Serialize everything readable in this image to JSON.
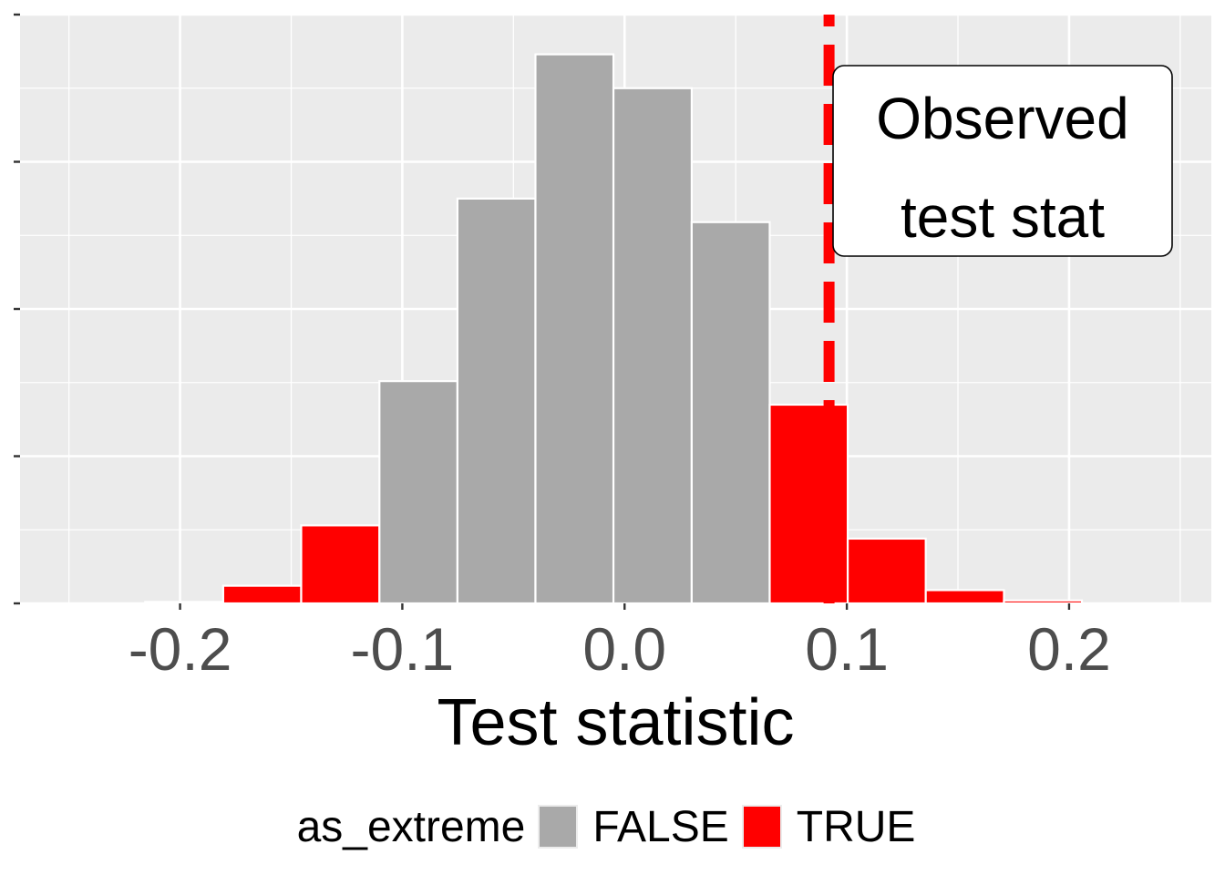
{
  "chart_data": {
    "type": "bar",
    "subtype": "histogram",
    "title": "",
    "xlabel": "Test statistic",
    "ylabel": "",
    "xlim": [
      -0.272,
      0.264
    ],
    "ylim": [
      0,
      400
    ],
    "x_ticks": [
      -0.2,
      -0.1,
      0.0,
      0.1,
      0.2
    ],
    "x_tick_labels": [
      "-0.2",
      "-0.1",
      "0.0",
      "0.1",
      "0.2"
    ],
    "y_ticks": [
      0,
      100,
      200,
      300,
      400
    ],
    "y_tick_labels_visible": false,
    "grid": true,
    "bin_width": 0.0351,
    "bins": [
      {
        "x_start": -0.2157,
        "x_end": -0.1806,
        "count": 1,
        "as_extreme": true
      },
      {
        "x_start": -0.1806,
        "x_end": -0.1455,
        "count": 12,
        "as_extreme": true
      },
      {
        "x_start": -0.1455,
        "x_end": -0.1103,
        "count": 53,
        "as_extreme": true
      },
      {
        "x_start": -0.1103,
        "x_end": -0.0752,
        "count": 151,
        "as_extreme": false
      },
      {
        "x_start": -0.0752,
        "x_end": -0.0401,
        "count": 275,
        "as_extreme": false
      },
      {
        "x_start": -0.0401,
        "x_end": -0.005,
        "count": 373,
        "as_extreme": false
      },
      {
        "x_start": -0.005,
        "x_end": 0.0302,
        "count": 350,
        "as_extreme": false
      },
      {
        "x_start": 0.0302,
        "x_end": 0.0653,
        "count": 259,
        "as_extreme": false
      },
      {
        "x_start": 0.0653,
        "x_end": 0.1004,
        "count": 135,
        "as_extreme": true
      },
      {
        "x_start": 0.1004,
        "x_end": 0.1355,
        "count": 44,
        "as_extreme": true
      },
      {
        "x_start": 0.1355,
        "x_end": 0.1707,
        "count": 9,
        "as_extreme": true
      },
      {
        "x_start": 0.1707,
        "x_end": 0.2058,
        "count": 2,
        "as_extreme": true
      }
    ],
    "reference_line": {
      "x": 0.092,
      "style": "dashed",
      "color": "#ff0000"
    },
    "annotation": {
      "text_lines": [
        "Observed",
        "test stat"
      ],
      "x": 0.171,
      "y": 325
    },
    "legend": {
      "title": "as_extreme",
      "position": "bottom",
      "entries": [
        {
          "label": "FALSE",
          "color": "#a9a9a9"
        },
        {
          "label": "TRUE",
          "color": "#ff0000"
        }
      ]
    }
  },
  "colors": {
    "panel_bg": "#ebebeb",
    "grid": "#ffffff",
    "false_fill": "#a9a9a9",
    "true_fill": "#ff0000",
    "bar_outline": "#ffffff"
  }
}
